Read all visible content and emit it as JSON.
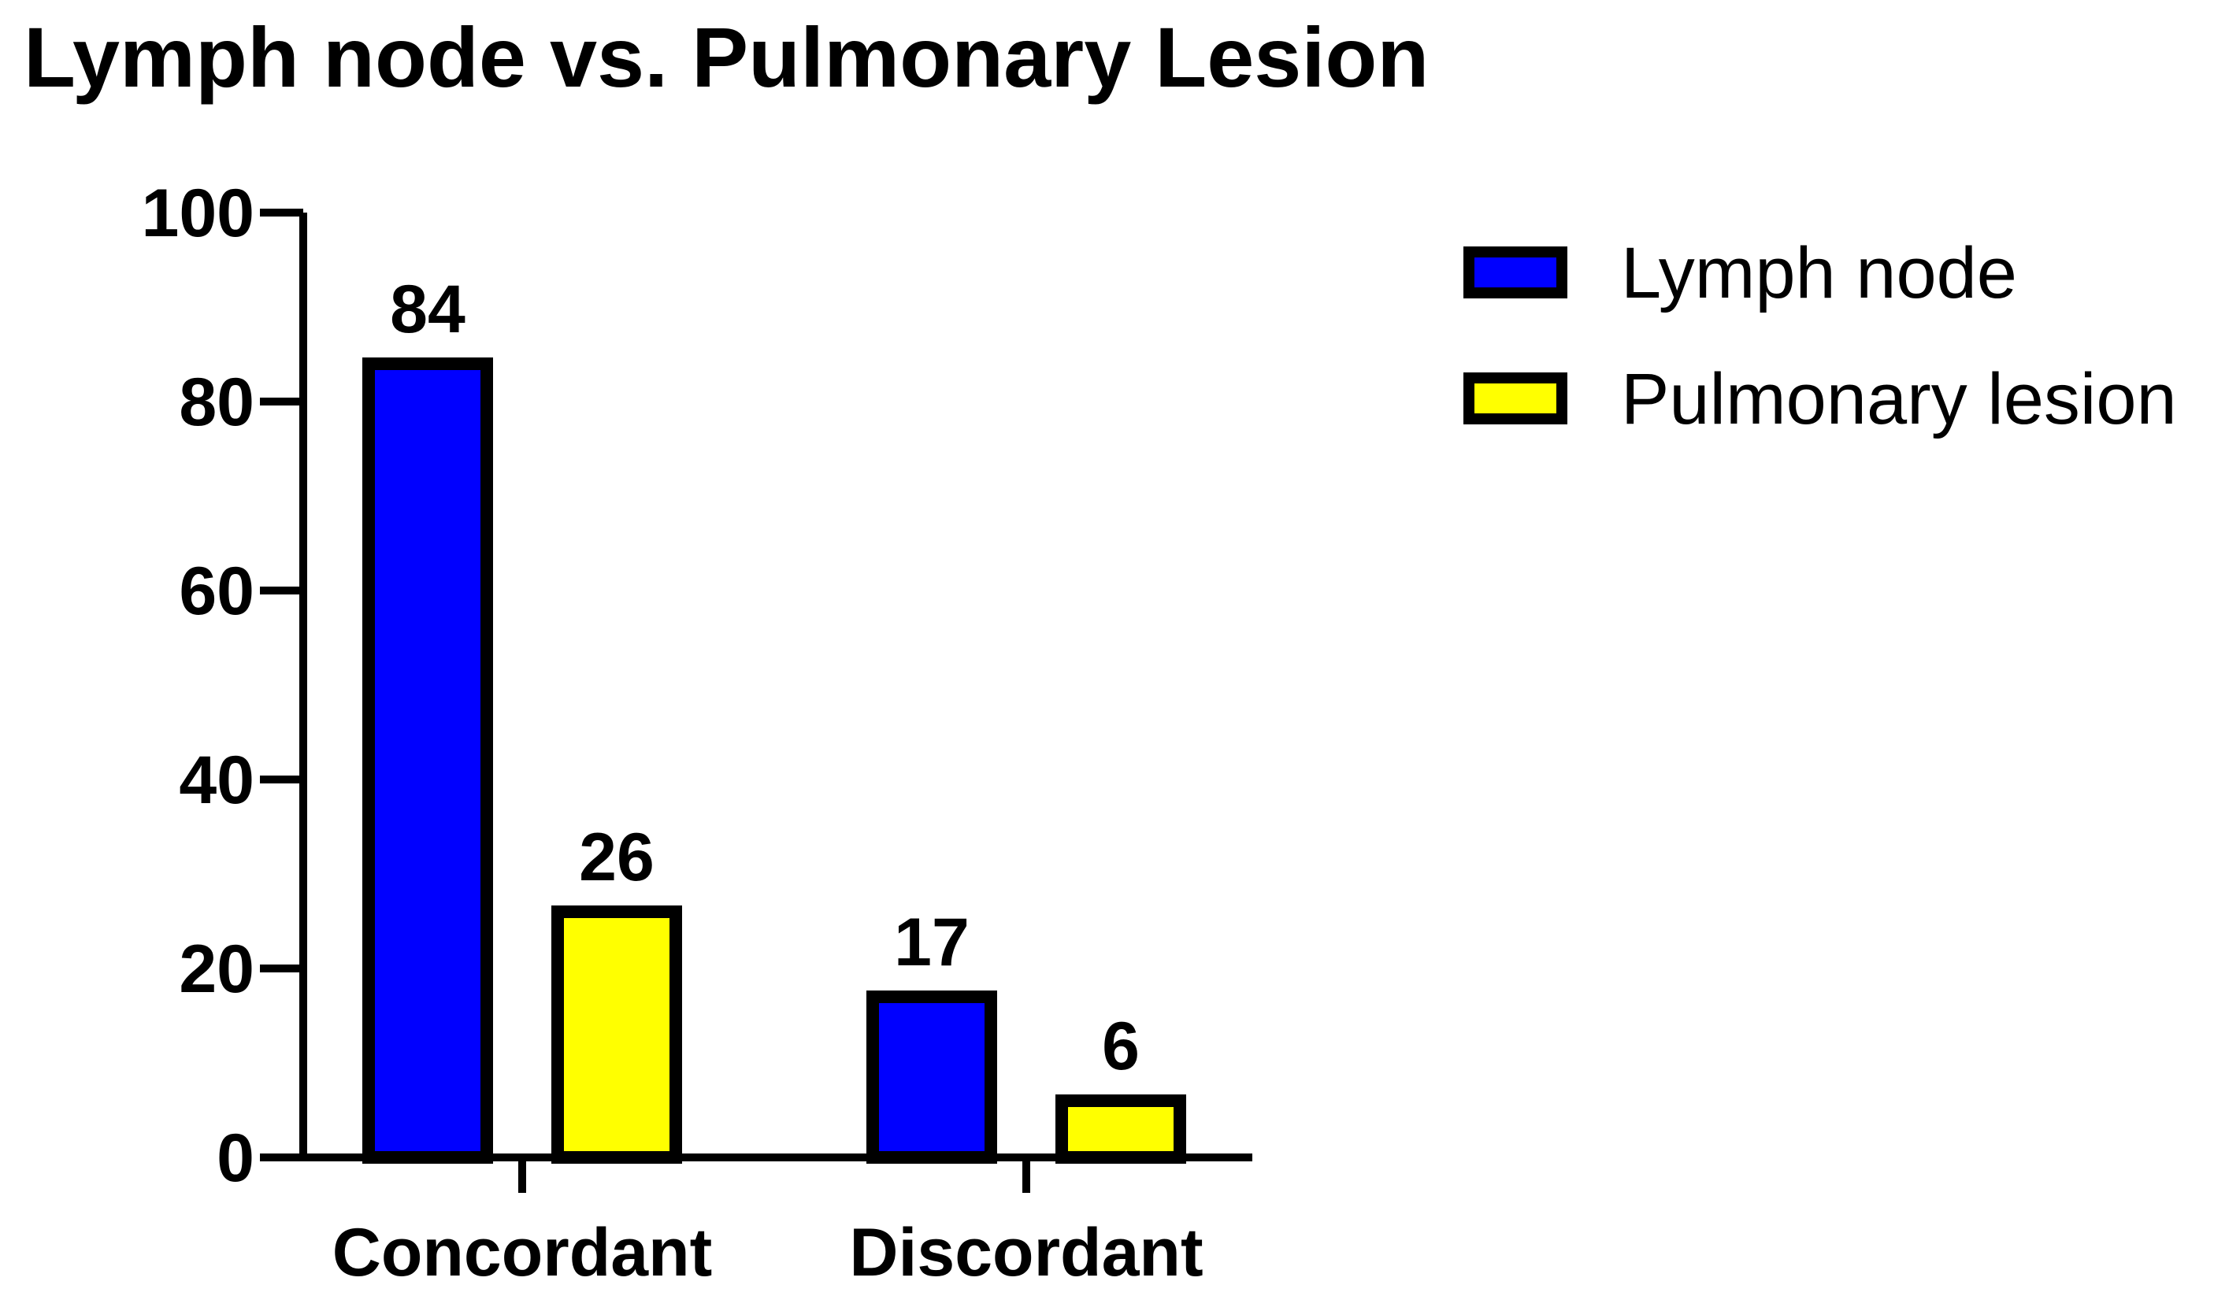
{
  "chart_data": {
    "type": "bar",
    "title": "Lymph node vs. Pulmonary Lesion",
    "xlabel": "",
    "ylabel": "",
    "ylim": [
      0,
      100
    ],
    "yticks": [
      0,
      20,
      40,
      60,
      80,
      100
    ],
    "ytick_labels": [
      "0",
      "20",
      "40",
      "60",
      "80",
      "100"
    ],
    "categories": [
      "Concordant",
      "Discordant"
    ],
    "series": [
      {
        "name": "Lymph node",
        "values": [
          84,
          17
        ],
        "color": "#0000FF"
      },
      {
        "name": "Pulmonary lesion",
        "values": [
          26,
          6
        ],
        "color": "#FFFF00"
      }
    ],
    "data_labels": [
      [
        "84",
        "17"
      ],
      [
        "26",
        "6"
      ]
    ],
    "legend_position": "top-right",
    "grid": false,
    "bar_outline_color": "#000000"
  }
}
